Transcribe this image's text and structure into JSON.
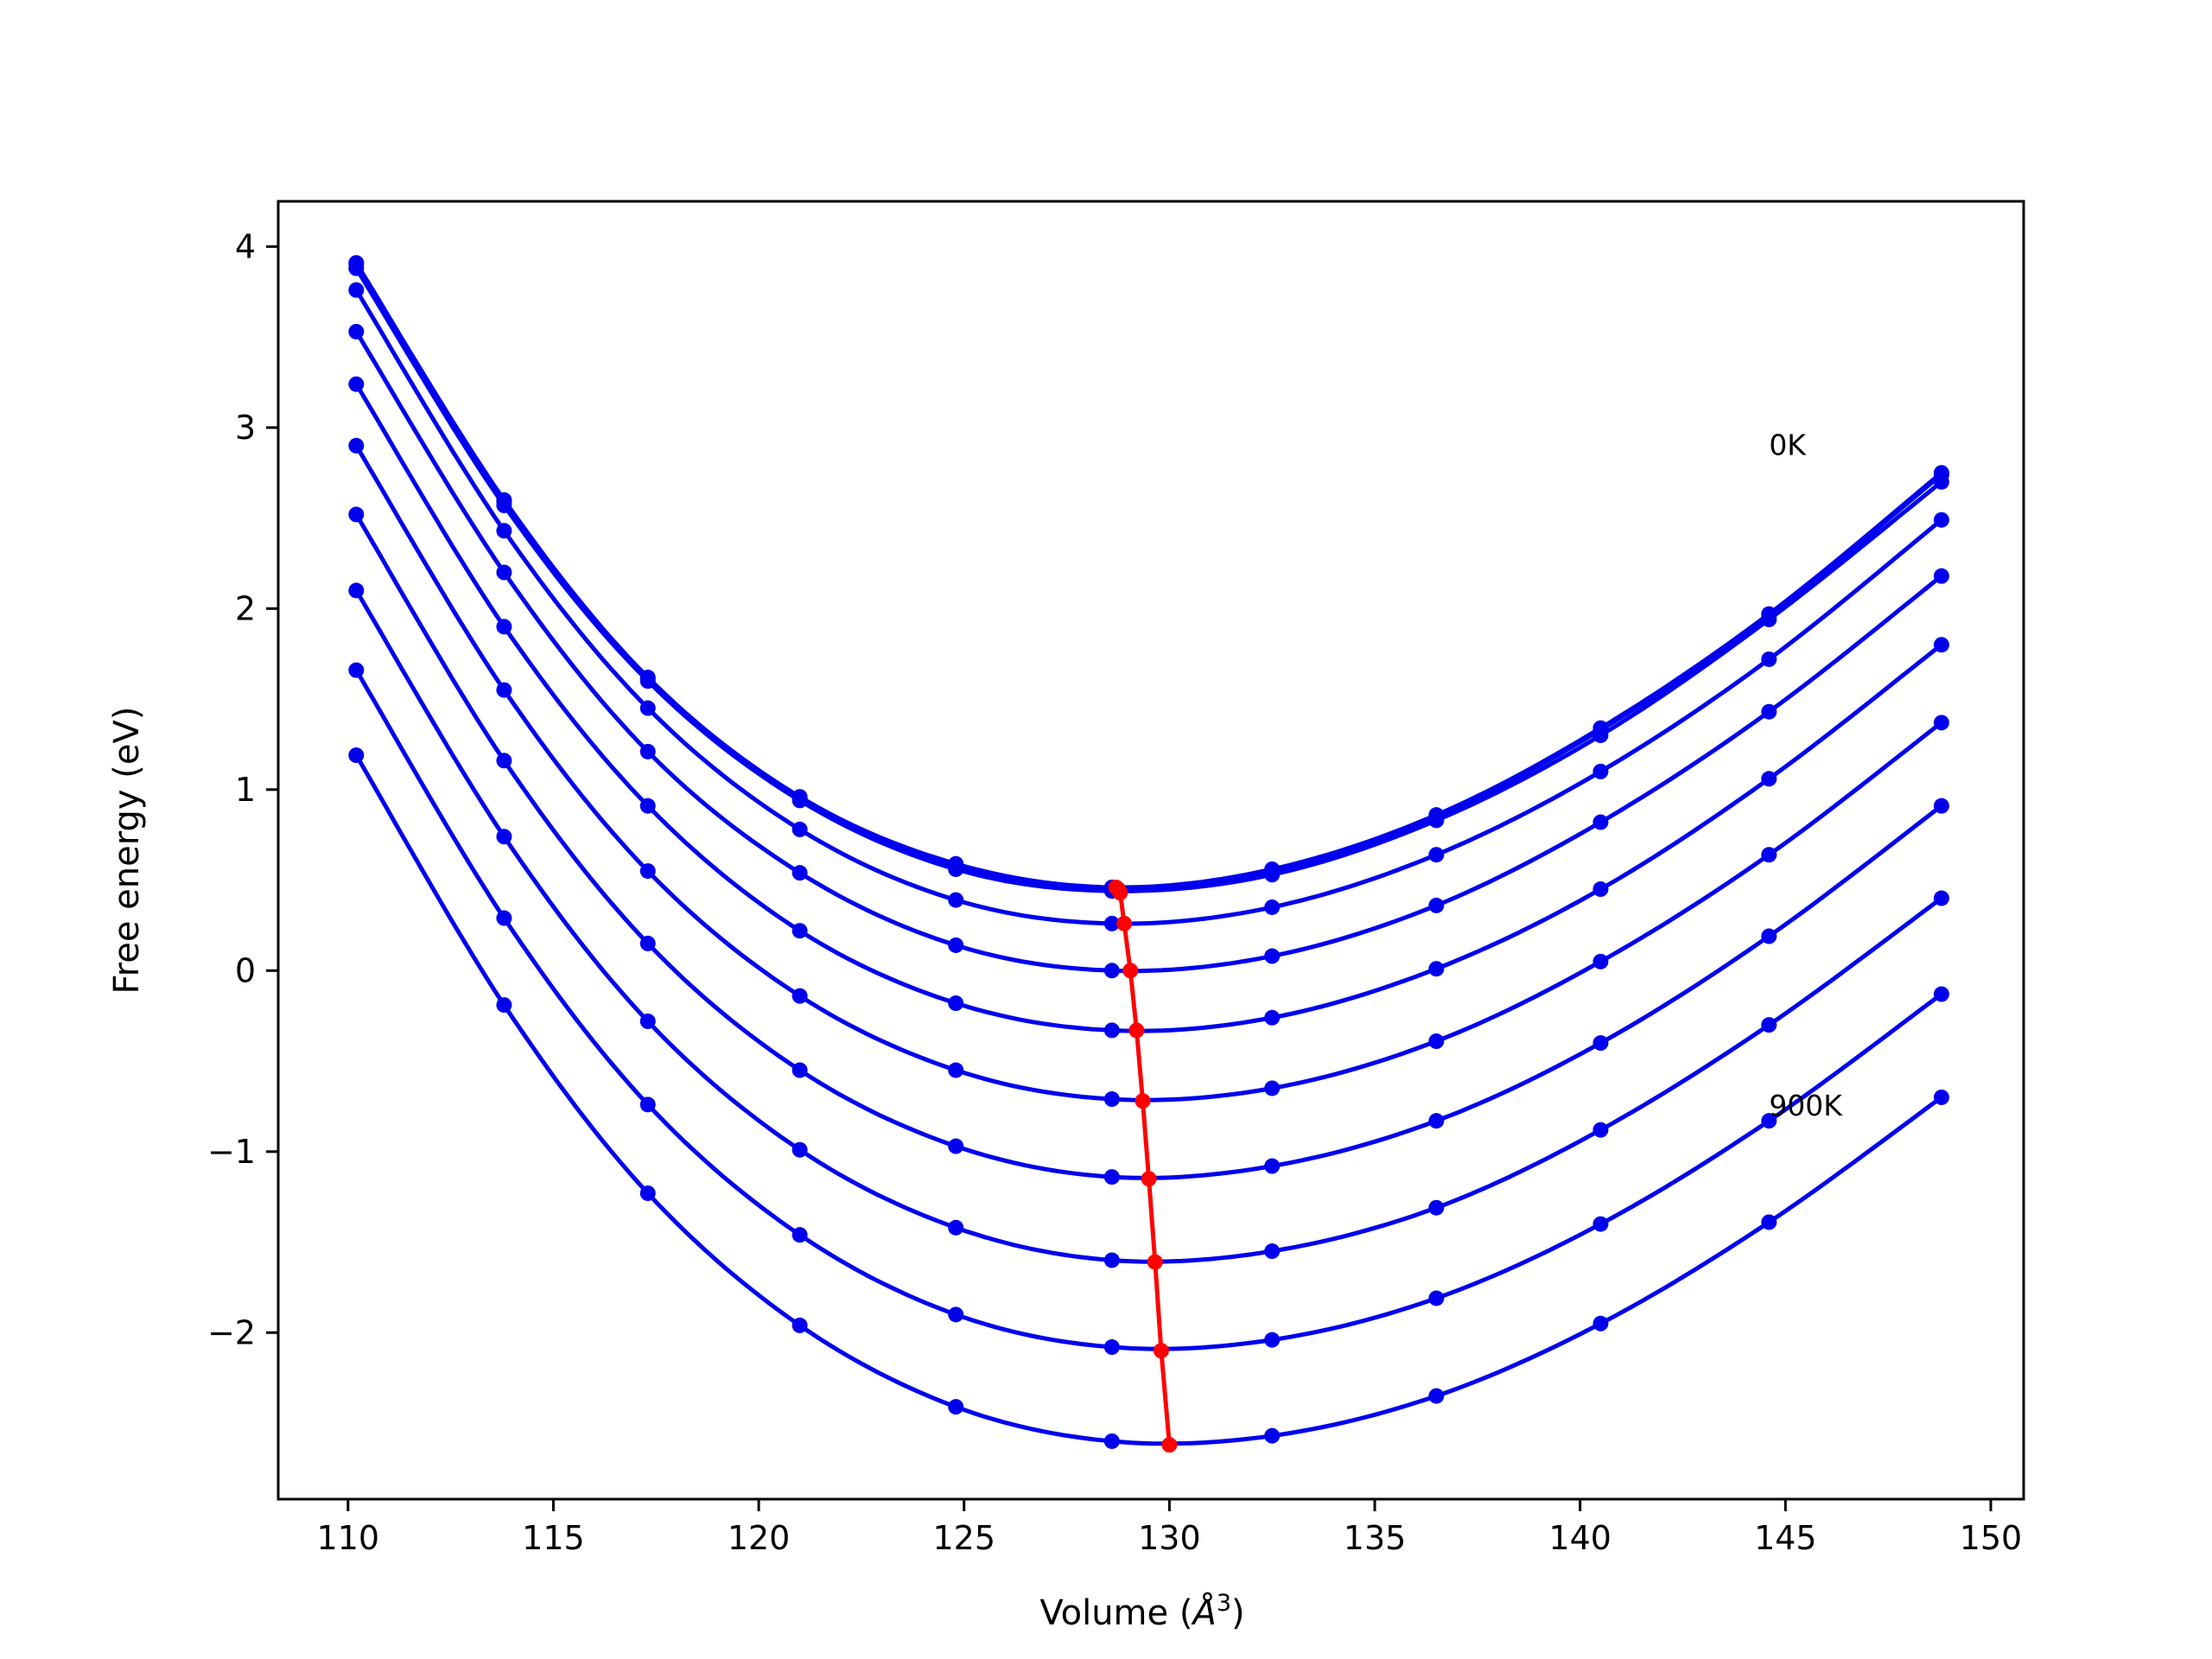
{
  "chart_data": {
    "type": "line",
    "xlabel": "Volume (",
    "xlabel_unit_base": "Å",
    "xlabel_unit_exp": "3",
    "xlabel_close": ")",
    "ylabel": "Free energy (eV)",
    "xlim": [
      108.3,
      150.8
    ],
    "ylim": [
      -2.92,
      4.25
    ],
    "x_ticks": [
      110,
      115,
      120,
      125,
      130,
      135,
      140,
      145,
      150
    ],
    "x_tick_labels": [
      "110",
      "115",
      "120",
      "125",
      "130",
      "135",
      "140",
      "145",
      "150"
    ],
    "y_ticks": [
      -2,
      -1,
      0,
      1,
      2,
      3,
      4
    ],
    "y_tick_labels": [
      "−2",
      "−1",
      "0",
      "1",
      "2",
      "3",
      "4"
    ],
    "grid": false,
    "colors": {
      "curves": "#0000ee",
      "minimum_path": "#ff0000",
      "frame": "#000000"
    },
    "volumes": [
      110.2,
      113.8,
      117.3,
      121.0,
      124.8,
      128.6,
      132.5,
      136.5,
      140.5,
      144.6,
      148.8
    ],
    "series": [
      {
        "values": [
          3.91,
          2.6,
          1.62,
          0.96,
          0.59,
          0.46,
          0.56,
          0.86,
          1.34,
          1.97,
          2.75
        ]
      },
      {
        "values": [
          3.9,
          2.59,
          1.61,
          0.95,
          0.58,
          0.45,
          0.55,
          0.85,
          1.33,
          1.96,
          2.74
        ]
      },
      {
        "values": [
          3.88,
          2.57,
          1.6,
          0.94,
          0.56,
          0.44,
          0.53,
          0.83,
          1.3,
          1.94,
          2.7
        ]
      },
      {
        "values": [
          3.76,
          2.43,
          1.45,
          0.78,
          0.39,
          0.26,
          0.35,
          0.64,
          1.1,
          1.72,
          2.49
        ]
      },
      {
        "values": [
          3.53,
          2.2,
          1.21,
          0.54,
          0.14,
          0.0,
          0.08,
          0.36,
          0.82,
          1.43,
          2.18
        ]
      },
      {
        "values": [
          3.24,
          1.9,
          0.91,
          0.22,
          -0.18,
          -0.33,
          -0.26,
          0.01,
          0.45,
          1.06,
          1.8
        ]
      },
      {
        "values": [
          2.9,
          1.55,
          0.55,
          -0.14,
          -0.55,
          -0.71,
          -0.65,
          -0.39,
          0.05,
          0.64,
          1.37
        ]
      },
      {
        "values": [
          2.52,
          1.16,
          0.15,
          -0.55,
          -0.97,
          -1.14,
          -1.08,
          -0.83,
          -0.4,
          0.19,
          0.91
        ]
      },
      {
        "values": [
          2.1,
          0.74,
          -0.28,
          -0.99,
          -1.42,
          -1.6,
          -1.55,
          -1.31,
          -0.88,
          -0.3,
          0.4
        ]
      },
      {
        "values": [
          1.66,
          0.29,
          -0.74,
          -1.46,
          -1.9,
          -2.08,
          -2.04,
          -1.81,
          -1.4,
          -0.83,
          -0.13
        ]
      },
      {
        "values": [
          1.19,
          -0.19,
          -1.23,
          -1.96,
          -2.41,
          -2.6,
          -2.57,
          -2.35,
          -1.95,
          -1.39,
          -0.7
        ]
      }
    ],
    "minimum_path": {
      "x": [
        128.7,
        128.75,
        128.8,
        128.9,
        129.05,
        129.2,
        129.35,
        129.5,
        129.65,
        129.8,
        130.0
      ],
      "y": [
        0.46,
        0.45,
        0.43,
        0.26,
        0.0,
        -0.33,
        -0.72,
        -1.15,
        -1.61,
        -2.1,
        -2.62
      ]
    },
    "annotations": [
      {
        "text": "0K",
        "x": 144.6,
        "y": 2.85
      },
      {
        "text": "900K",
        "x": 144.6,
        "y": -0.8
      }
    ]
  }
}
